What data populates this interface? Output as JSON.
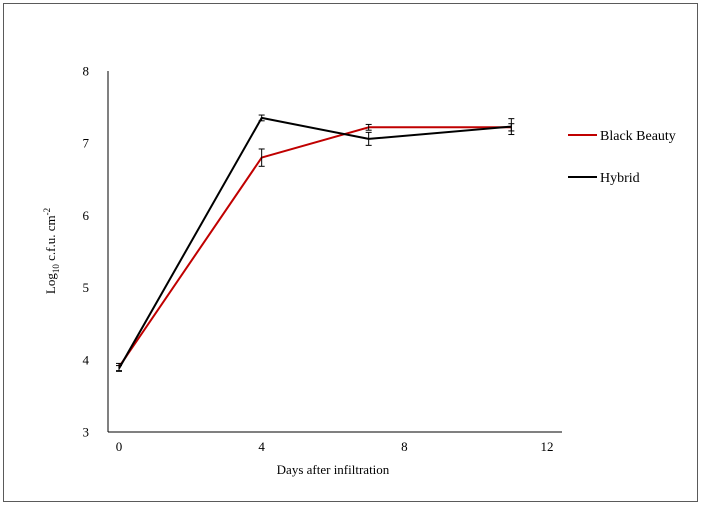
{
  "chart_data": {
    "type": "line",
    "xlabel": "Days after infiltration",
    "ylabel": {
      "base": "Log",
      "sub": "10",
      "mid": " c.f.u. cm",
      "sup": "-2"
    },
    "xlim": [
      0,
      12
    ],
    "ylim": [
      3,
      8
    ],
    "xticks": [
      "0",
      "4",
      "8",
      "12"
    ],
    "yticks": [
      "3",
      "4",
      "5",
      "6",
      "7",
      "8"
    ],
    "grid": false,
    "legend_position": "right",
    "series": [
      {
        "name": "Black Beauty",
        "color": "#c00000",
        "x": [
          0,
          4,
          7,
          11
        ],
        "y": [
          3.9,
          6.8,
          7.22,
          7.22
        ],
        "err": [
          0.05,
          0.12,
          0.04,
          0.05
        ]
      },
      {
        "name": "Hybrid",
        "color": "#000000",
        "x": [
          0,
          4,
          7,
          11
        ],
        "y": [
          3.88,
          7.35,
          7.06,
          7.23
        ],
        "err": [
          0.04,
          0.04,
          0.09,
          0.11
        ]
      }
    ]
  }
}
